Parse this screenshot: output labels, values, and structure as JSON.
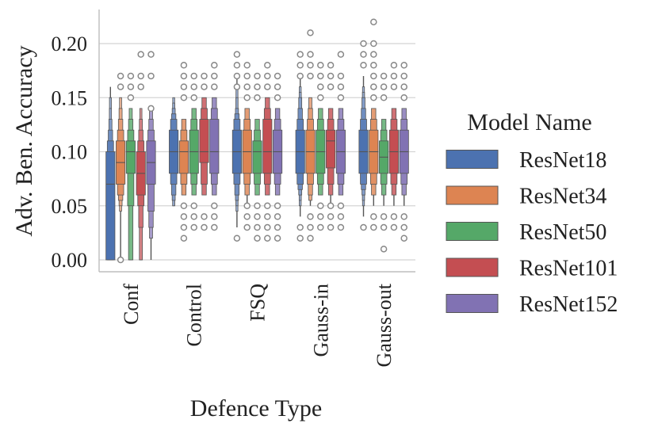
{
  "chart_data": {
    "type": "boxen",
    "title": "",
    "xlabel": "Defence Type",
    "ylabel": "Adv. Ben. Accuracy",
    "ylim": [
      -0.012,
      0.232
    ],
    "yticks": [
      0.0,
      0.05,
      0.1,
      0.15,
      0.2
    ],
    "ytick_labels": [
      "0.00",
      "0.05",
      "0.10",
      "0.15",
      "0.20"
    ],
    "grid": true,
    "legend_title": "Model Name",
    "legend_position": "right",
    "categories": [
      "Conf",
      "Control",
      "FSQ",
      "Gauss-in",
      "Gauss-out"
    ],
    "series": [
      {
        "name": "ResNet18",
        "color": "#4C72B0",
        "stats": [
          {
            "median": 0.07,
            "levels": [
              [
                0.0,
                0.1
              ],
              [
                0.0,
                0.11
              ],
              [
                0.0,
                0.12
              ],
              [
                0.0,
                0.13
              ],
              [
                0.0,
                0.14
              ],
              [
                0.0,
                0.15
              ]
            ],
            "whisker": [
              0.0,
              0.16
            ],
            "outliers": []
          },
          {
            "median": 0.1,
            "levels": [
              [
                0.08,
                0.12
              ],
              [
                0.07,
                0.13
              ],
              [
                0.06,
                0.135
              ],
              [
                0.055,
                0.14
              ],
              [
                0.05,
                0.145
              ],
              [
                0.05,
                0.15
              ]
            ],
            "whisker": [
              0.05,
              0.15
            ],
            "outliers": []
          },
          {
            "median": 0.1,
            "levels": [
              [
                0.08,
                0.12
              ],
              [
                0.07,
                0.13
              ],
              [
                0.06,
                0.135
              ],
              [
                0.055,
                0.14
              ],
              [
                0.05,
                0.15
              ],
              [
                0.045,
                0.16
              ]
            ],
            "whisker": [
              0.03,
              0.17
            ],
            "outliers": [
              0.02,
              0.16,
              0.17,
              0.18,
              0.19
            ]
          },
          {
            "median": 0.1,
            "levels": [
              [
                0.08,
                0.12
              ],
              [
                0.07,
                0.13
              ],
              [
                0.065,
                0.14
              ],
              [
                0.06,
                0.15
              ],
              [
                0.055,
                0.155
              ],
              [
                0.05,
                0.16
              ]
            ],
            "whisker": [
              0.04,
              0.17
            ],
            "outliers": [
              0.02,
              0.03,
              0.17,
              0.18,
              0.19
            ]
          },
          {
            "median": 0.1,
            "levels": [
              [
                0.08,
                0.12
              ],
              [
                0.07,
                0.13
              ],
              [
                0.065,
                0.14
              ],
              [
                0.06,
                0.15
              ],
              [
                0.055,
                0.155
              ],
              [
                0.05,
                0.16
              ]
            ],
            "whisker": [
              0.04,
              0.17
            ],
            "outliers": [
              0.03,
              0.18,
              0.19,
              0.2
            ]
          }
        ]
      },
      {
        "name": "ResNet34",
        "color": "#DD8452",
        "stats": [
          {
            "median": 0.09,
            "levels": [
              [
                0.07,
                0.11
              ],
              [
                0.06,
                0.12
              ],
              [
                0.055,
                0.13
              ],
              [
                0.05,
                0.14
              ],
              [
                0.045,
                0.15
              ]
            ],
            "whisker": [
              0.0,
              0.15
            ],
            "outliers": [
              0.0,
              0.16,
              0.17
            ]
          },
          {
            "median": 0.1,
            "levels": [
              [
                0.08,
                0.11
              ],
              [
                0.07,
                0.12
              ],
              [
                0.06,
                0.13
              ]
            ],
            "whisker": [
              0.06,
              0.13
            ],
            "outliers": [
              0.02,
              0.03,
              0.04,
              0.05,
              0.15,
              0.16,
              0.17,
              0.18
            ]
          },
          {
            "median": 0.1,
            "levels": [
              [
                0.08,
                0.12
              ],
              [
                0.07,
                0.13
              ],
              [
                0.06,
                0.14
              ]
            ],
            "whisker": [
              0.05,
              0.14
            ],
            "outliers": [
              0.03,
              0.04,
              0.05,
              0.15,
              0.16,
              0.17,
              0.18
            ]
          },
          {
            "median": 0.1,
            "levels": [
              [
                0.08,
                0.12
              ],
              [
                0.07,
                0.13
              ],
              [
                0.06,
                0.14
              ],
              [
                0.055,
                0.15
              ]
            ],
            "whisker": [
              0.05,
              0.15
            ],
            "outliers": [
              0.02,
              0.03,
              0.04,
              0.17,
              0.18,
              0.19,
              0.21
            ]
          },
          {
            "median": 0.1,
            "levels": [
              [
                0.08,
                0.12
              ],
              [
                0.07,
                0.13
              ],
              [
                0.06,
                0.14
              ]
            ],
            "whisker": [
              0.05,
              0.14
            ],
            "outliers": [
              0.03,
              0.04,
              0.15,
              0.16,
              0.17,
              0.18,
              0.19,
              0.2,
              0.22
            ]
          }
        ]
      },
      {
        "name": "ResNet50",
        "color": "#55A868",
        "stats": [
          {
            "median": 0.1,
            "levels": [
              [
                0.08,
                0.11
              ],
              [
                0.05,
                0.12
              ],
              [
                0.0,
                0.13
              ],
              [
                0.0,
                0.14
              ]
            ],
            "whisker": [
              0.0,
              0.14
            ],
            "outliers": [
              0.15,
              0.16,
              0.17
            ]
          },
          {
            "median": 0.1,
            "levels": [
              [
                0.08,
                0.12
              ],
              [
                0.07,
                0.13
              ],
              [
                0.06,
                0.14
              ]
            ],
            "whisker": [
              0.06,
              0.14
            ],
            "outliers": [
              0.03,
              0.04,
              0.05,
              0.15,
              0.16,
              0.17
            ]
          },
          {
            "median": 0.1,
            "levels": [
              [
                0.08,
                0.11
              ],
              [
                0.07,
                0.12
              ],
              [
                0.06,
                0.13
              ]
            ],
            "whisker": [
              0.06,
              0.13
            ],
            "outliers": [
              0.02,
              0.03,
              0.04,
              0.05,
              0.15,
              0.16,
              0.17
            ]
          },
          {
            "median": 0.1,
            "levels": [
              [
                0.08,
                0.12
              ],
              [
                0.07,
                0.13
              ],
              [
                0.06,
                0.14
              ]
            ],
            "whisker": [
              0.06,
              0.14
            ],
            "outliers": [
              0.03,
              0.04,
              0.05,
              0.15,
              0.16,
              0.17,
              0.18
            ]
          },
          {
            "median": 0.095,
            "levels": [
              [
                0.08,
                0.11
              ],
              [
                0.07,
                0.12
              ],
              [
                0.06,
                0.13
              ]
            ],
            "whisker": [
              0.05,
              0.13
            ],
            "outliers": [
              0.01,
              0.03,
              0.04,
              0.15,
              0.16,
              0.17
            ]
          }
        ]
      },
      {
        "name": "ResNet101",
        "color": "#C44E52",
        "stats": [
          {
            "median": 0.08,
            "levels": [
              [
                0.06,
                0.1
              ],
              [
                0.05,
                0.11
              ],
              [
                0.03,
                0.12
              ],
              [
                0.0,
                0.13
              ],
              [
                0.0,
                0.14
              ]
            ],
            "whisker": [
              0.0,
              0.14
            ],
            "outliers": [
              0.16,
              0.17,
              0.19
            ]
          },
          {
            "median": 0.1,
            "levels": [
              [
                0.09,
                0.13
              ],
              [
                0.07,
                0.14
              ],
              [
                0.06,
                0.15
              ]
            ],
            "whisker": [
              0.06,
              0.15
            ],
            "outliers": [
              0.03,
              0.04,
              0.16,
              0.17
            ]
          },
          {
            "median": 0.1,
            "levels": [
              [
                0.08,
                0.13
              ],
              [
                0.07,
                0.14
              ],
              [
                0.06,
                0.15
              ]
            ],
            "whisker": [
              0.06,
              0.15
            ],
            "outliers": [
              0.02,
              0.03,
              0.04,
              0.05,
              0.16,
              0.17,
              0.18
            ]
          },
          {
            "median": 0.11,
            "levels": [
              [
                0.085,
                0.12
              ],
              [
                0.07,
                0.13
              ],
              [
                0.06,
                0.14
              ]
            ],
            "whisker": [
              0.05,
              0.14
            ],
            "outliers": [
              0.03,
              0.04,
              0.05,
              0.16,
              0.17,
              0.18
            ]
          },
          {
            "median": 0.1,
            "levels": [
              [
                0.08,
                0.12
              ],
              [
                0.07,
                0.13
              ],
              [
                0.06,
                0.14
              ]
            ],
            "whisker": [
              0.05,
              0.14
            ],
            "outliers": [
              0.03,
              0.04,
              0.16,
              0.17,
              0.18
            ]
          }
        ]
      },
      {
        "name": "ResNet152",
        "color": "#8172B3",
        "stats": [
          {
            "median": 0.09,
            "levels": [
              [
                0.07,
                0.11
              ],
              [
                0.045,
                0.12
              ],
              [
                0.03,
                0.13
              ],
              [
                0.02,
                0.14
              ]
            ],
            "whisker": [
              0.0,
              0.14
            ],
            "outliers": [
              0.14,
              0.17,
              0.19
            ]
          },
          {
            "median": 0.1,
            "levels": [
              [
                0.08,
                0.13
              ],
              [
                0.07,
                0.14
              ],
              [
                0.06,
                0.15
              ]
            ],
            "whisker": [
              0.06,
              0.15
            ],
            "outliers": [
              0.03,
              0.04,
              0.05,
              0.16,
              0.17,
              0.18
            ]
          },
          {
            "median": 0.1,
            "levels": [
              [
                0.08,
                0.12
              ],
              [
                0.07,
                0.13
              ],
              [
                0.06,
                0.14
              ]
            ],
            "whisker": [
              0.06,
              0.14
            ],
            "outliers": [
              0.02,
              0.03,
              0.04,
              0.05,
              0.15,
              0.16,
              0.17
            ]
          },
          {
            "median": 0.1,
            "levels": [
              [
                0.08,
                0.12
              ],
              [
                0.07,
                0.13
              ],
              [
                0.06,
                0.14
              ]
            ],
            "whisker": [
              0.06,
              0.14
            ],
            "outliers": [
              0.03,
              0.04,
              0.05,
              0.15,
              0.16,
              0.17,
              0.19
            ]
          },
          {
            "median": 0.1,
            "levels": [
              [
                0.08,
                0.12
              ],
              [
                0.07,
                0.13
              ],
              [
                0.06,
                0.14
              ]
            ],
            "whisker": [
              0.05,
              0.14
            ],
            "outliers": [
              0.02,
              0.03,
              0.04,
              0.15,
              0.16,
              0.17,
              0.18
            ]
          }
        ]
      }
    ]
  }
}
